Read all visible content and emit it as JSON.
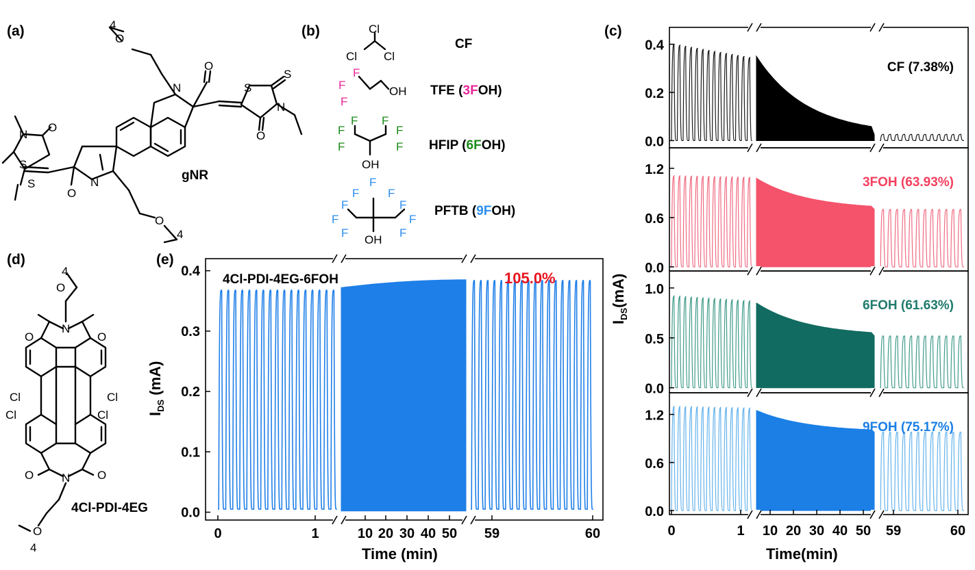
{
  "panels": {
    "a": {
      "label": "(a)",
      "molecule_name": "gNR",
      "atoms": {
        "O": "O",
        "N": "N",
        "S": "S",
        "chain_repeat": "4"
      }
    },
    "b": {
      "label": "(b)",
      "solvents": [
        {
          "abbr": "CF",
          "name": "CF",
          "formula_atoms": [
            "Cl",
            "Cl",
            "Cl"
          ]
        },
        {
          "abbr": "TFE",
          "name_prefix": "TFE (",
          "highlight_num": "3",
          "highlight_F": "F",
          "name_suffix": "OH)",
          "color": "#e8289a",
          "formula_atoms": [
            "F",
            "F",
            "F",
            "OH"
          ]
        },
        {
          "abbr": "HFIP",
          "name_prefix": "HFIP (",
          "highlight_num": "6",
          "highlight_F": "F",
          "name_suffix": "OH)",
          "color": "#1a8a1a",
          "formula_atoms": [
            "F",
            "F",
            "F",
            "F",
            "F",
            "F",
            "OH"
          ]
        },
        {
          "abbr": "PFTB",
          "name_prefix": "PFTB (",
          "highlight_num": "9",
          "highlight_F": "F",
          "name_suffix": "OH)",
          "color": "#2b8ef0",
          "formula_atoms": [
            "F",
            "F",
            "F",
            "F",
            "F",
            "F",
            "F",
            "F",
            "F",
            "OH"
          ]
        }
      ]
    },
    "d": {
      "label": "(d)",
      "molecule_name": "4Cl-PDI-4EG",
      "atoms": {
        "O": "O",
        "N": "N",
        "Cl": "Cl",
        "chain_repeat": "4"
      }
    },
    "e": {
      "label": "(e)"
    },
    "c": {
      "label": "(c)"
    }
  },
  "chart_data": [
    {
      "id": "e",
      "type": "line",
      "title": "4Cl-PDI-4EG-6FOH",
      "annotation": "105.0%",
      "annotation_color": "#e8141e",
      "series_color": "#1f7fe8",
      "ylabel_main": "I",
      "ylabel_sub": "DS",
      "ylabel_unit": " (mA)",
      "xlabel": "Time (min)",
      "ylim": [
        -0.013,
        0.42
      ],
      "yticks": [
        "0.0",
        "0.1",
        "0.2",
        "0.3",
        "0.4"
      ],
      "ytick_values": [
        0.0,
        0.1,
        0.2,
        0.3,
        0.4
      ],
      "segments": [
        {
          "name": "initial cycling",
          "xticks": [
            "0",
            "1"
          ],
          "xtick_values": [
            0,
            1
          ],
          "cycles": 17,
          "on": 0.368,
          "off": 0.005
        },
        {
          "name": "continuous operation",
          "xticks": [
            "10",
            "20",
            "30",
            "40",
            "50"
          ],
          "xtick_values": [
            10,
            20,
            30,
            40,
            50
          ],
          "start": 0.372,
          "end": 0.385,
          "off": 0.002
        },
        {
          "name": "final cycling",
          "xticks": [
            "59",
            "60"
          ],
          "xtick_values": [
            59,
            60
          ],
          "cycles": 18,
          "on": 0.384,
          "off": 0.005
        }
      ]
    },
    {
      "id": "c",
      "type": "line",
      "ylabel_main": "I",
      "ylabel_sub": "DS",
      "ylabel_unit": "(mA)",
      "xlabel": "Time(min)",
      "xticks_left": [
        "0",
        "1"
      ],
      "xticks_mid": [
        "10",
        "20",
        "30",
        "40",
        "50"
      ],
      "xticks_right": [
        "59",
        "60"
      ],
      "subplots": [
        {
          "label": "CF (7.38%)",
          "color": "#1a1a1a",
          "fill": "#000000",
          "label_color": "#000000",
          "yticks": [
            "0.0",
            "0.2",
            "0.4"
          ],
          "ytick_values": [
            0.0,
            0.2,
            0.4
          ],
          "ylim": [
            -0.03,
            0.47
          ],
          "cycle_on_start": 0.4,
          "cycle_on_end": 0.345,
          "decay_start": 0.35,
          "decay_end": 0.025,
          "final_on": 0.026
        },
        {
          "label": "3FOH (63.93%)",
          "color": "#f06a80",
          "fill": "#f4536b",
          "label_color": "#f4405e",
          "yticks": [
            "0.0",
            "0.6",
            "1.2"
          ],
          "ytick_values": [
            0.0,
            0.6,
            1.2
          ],
          "ylim": [
            -0.05,
            1.45
          ],
          "cycle_on_start": 1.11,
          "cycle_on_end": 1.09,
          "decay_start": 1.08,
          "decay_end": 0.7,
          "final_on": 0.7
        },
        {
          "label": "6FOH (61.63%)",
          "color": "#3f9a88",
          "fill": "#116b60",
          "label_color": "#1f7a6c",
          "yticks": [
            "0.0",
            "0.5",
            "1.0"
          ],
          "ytick_values": [
            0.0,
            0.5,
            1.0
          ],
          "ylim": [
            -0.05,
            1.17
          ],
          "cycle_on_start": 0.92,
          "cycle_on_end": 0.87,
          "decay_start": 0.85,
          "decay_end": 0.52,
          "final_on": 0.52
        },
        {
          "label": "9FOH (75.17%)",
          "color": "#64b2ec",
          "fill": "#1b7fe6",
          "label_color": "#1b7fe6",
          "yticks": [
            "0.0",
            "0.6",
            "1.2"
          ],
          "ytick_values": [
            0.0,
            0.6,
            1.2
          ],
          "ylim": [
            -0.05,
            1.47
          ],
          "cycle_on_start": 1.3,
          "cycle_on_end": 1.28,
          "decay_start": 1.25,
          "decay_end": 0.98,
          "final_on": 0.98
        }
      ]
    }
  ]
}
